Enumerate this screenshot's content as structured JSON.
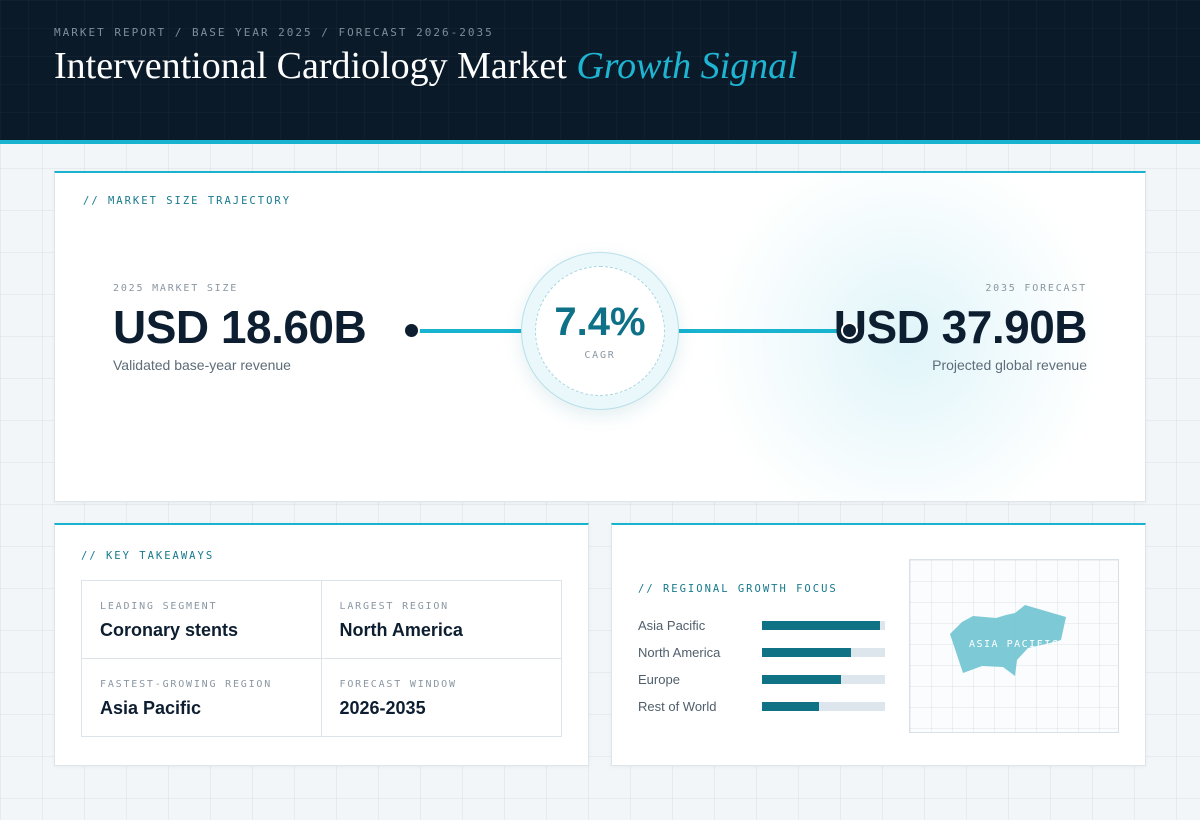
{
  "header": {
    "eyebrow": "MARKET REPORT / BASE YEAR 2025 / FORECAST 2026-2035",
    "title_main": "Interventional Cardiology Market",
    "title_accent": "Growth Signal"
  },
  "trajectory": {
    "label": "// MARKET SIZE TRAJECTORY",
    "start": {
      "caption": "2025 MARKET SIZE",
      "value": "USD 18.60B",
      "note": "Validated base-year revenue"
    },
    "end": {
      "caption": "2035 FORECAST",
      "value": "USD 37.90B",
      "note": "Projected global revenue"
    },
    "cagr": {
      "value": "7.4%",
      "label": "CAGR"
    }
  },
  "takeaways": {
    "label": "// KEY TAKEAWAYS",
    "items": [
      {
        "caption": "LEADING SEGMENT",
        "value": "Coronary stents"
      },
      {
        "caption": "LARGEST REGION",
        "value": "North America"
      },
      {
        "caption": "FASTEST-GROWING REGION",
        "value": "Asia Pacific"
      },
      {
        "caption": "FORECAST WINDOW",
        "value": "2026-2035"
      }
    ]
  },
  "regional": {
    "label": "// REGIONAL GROWTH FOCUS",
    "bars": [
      {
        "name": "Asia Pacific",
        "fill": 0.96
      },
      {
        "name": "North America",
        "fill": 0.72
      },
      {
        "name": "Europe",
        "fill": 0.64
      },
      {
        "name": "Rest of World",
        "fill": 0.46
      }
    ],
    "map_label": "ASIA PACIFIC",
    "colors": {
      "bar": "#0f7385",
      "track": "#dde6ec",
      "map_shape": "#6fc4d2"
    }
  }
}
